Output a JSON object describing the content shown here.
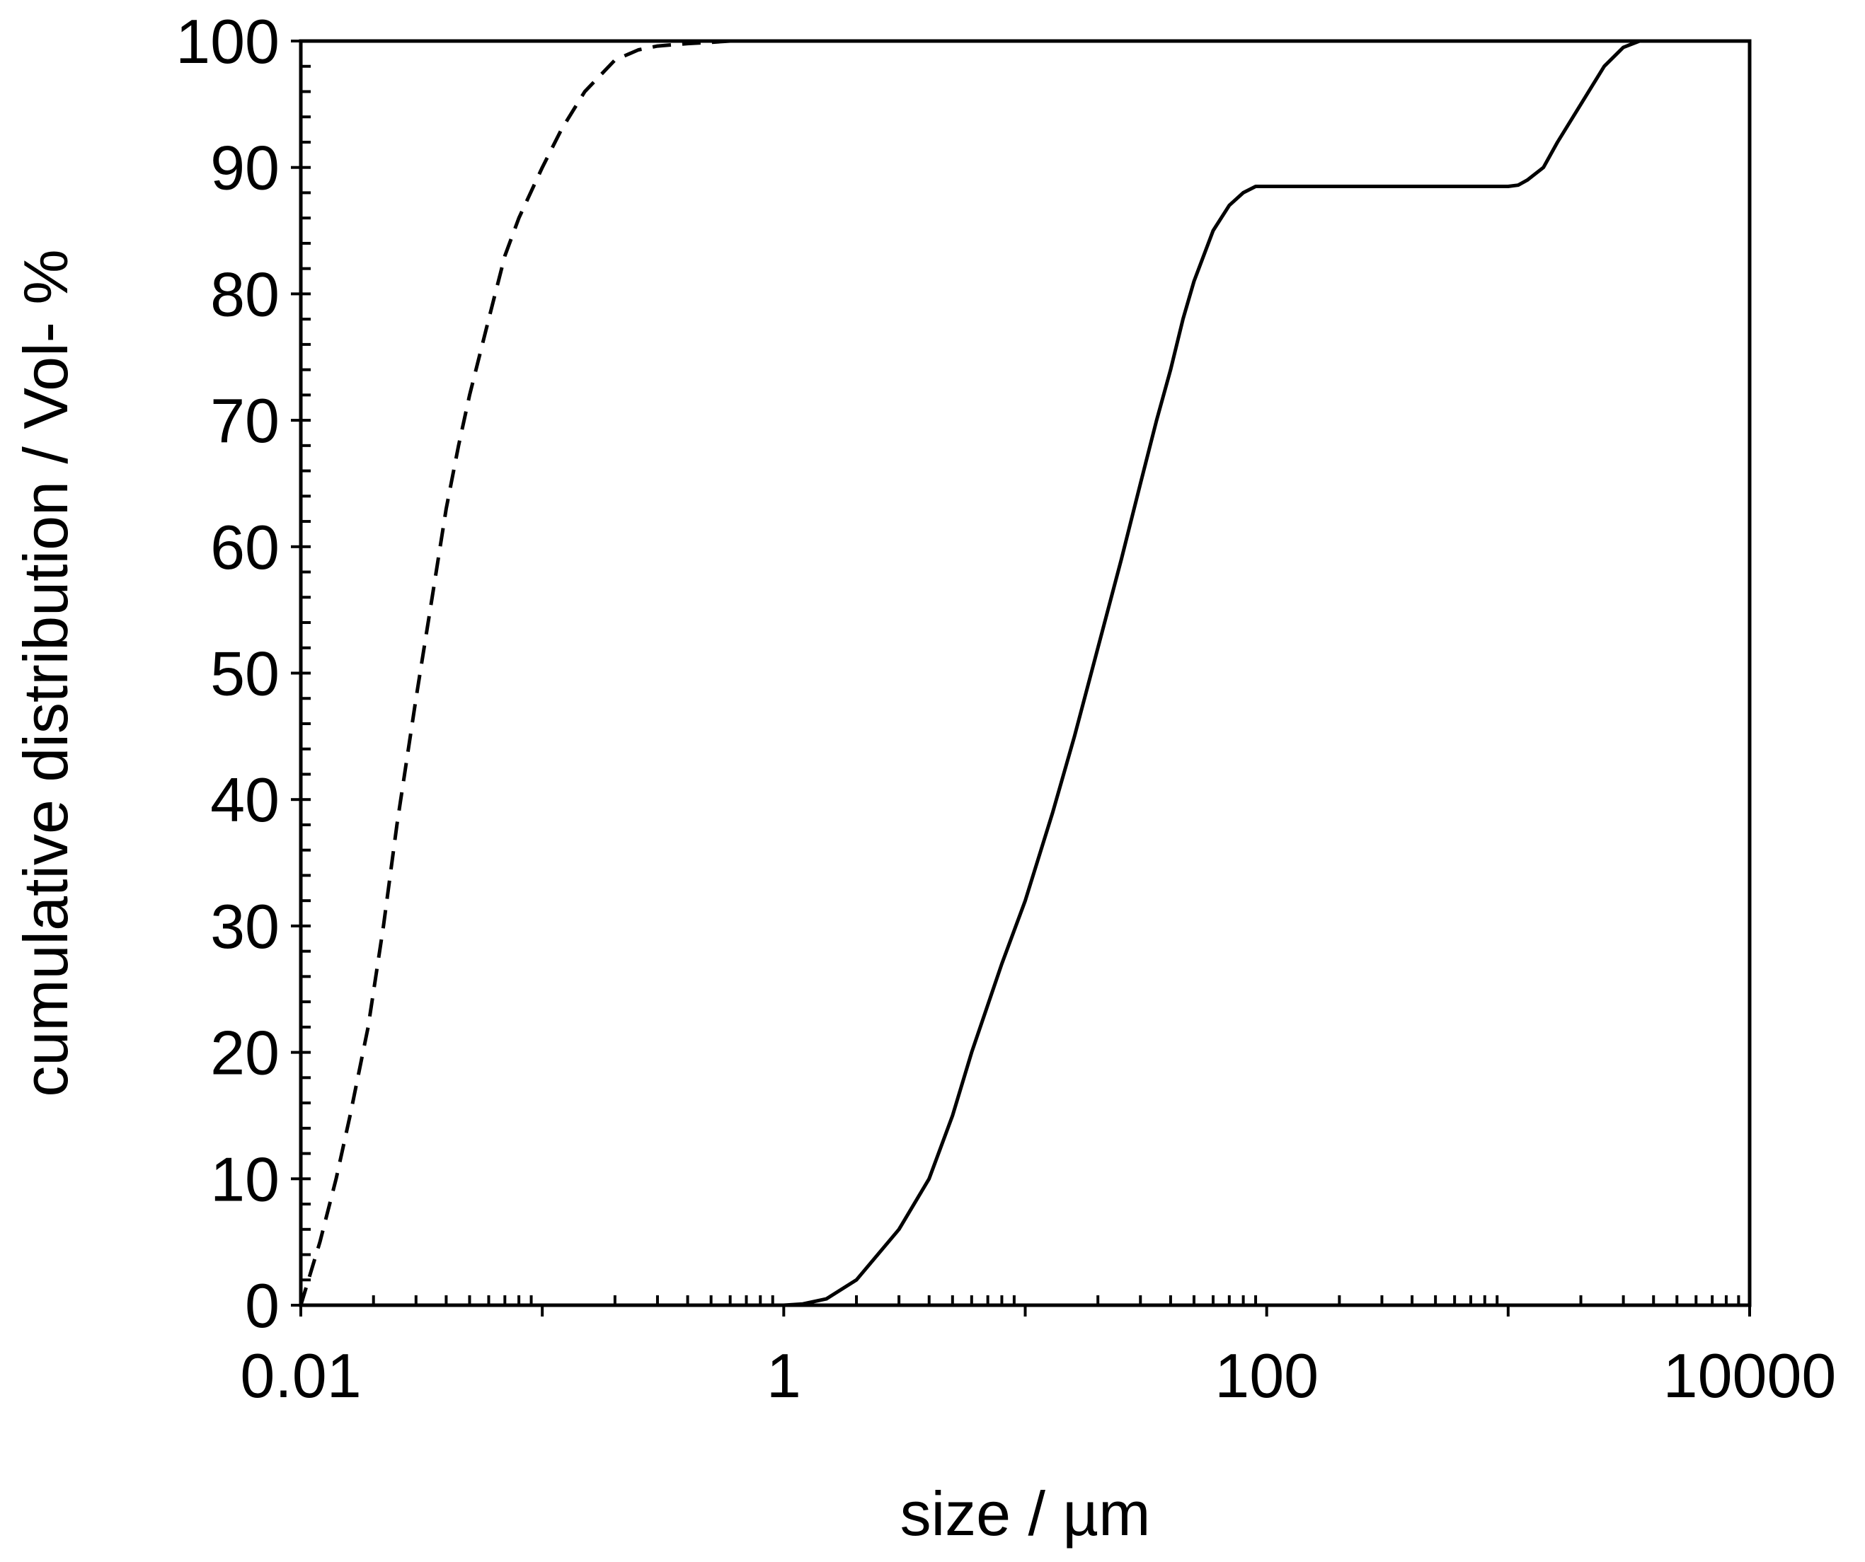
{
  "chart_data": {
    "type": "line",
    "title": "",
    "xlabel": "size / µm",
    "ylabel": "cumulative distribution / Vol- %",
    "xscale": "log",
    "xlim": [
      0.01,
      10000
    ],
    "ylim": [
      0,
      100
    ],
    "xticks": [
      0.01,
      1,
      100,
      10000
    ],
    "xtick_labels": [
      "0.01",
      "1",
      "100",
      "10000"
    ],
    "yticks": [
      0,
      10,
      20,
      30,
      40,
      50,
      60,
      70,
      80,
      90,
      100
    ],
    "ytick_labels": [
      "0",
      "10",
      "20",
      "30",
      "40",
      "50",
      "60",
      "70",
      "80",
      "90",
      "100"
    ],
    "grid": false,
    "legend": "none",
    "series": [
      {
        "style": "dashed",
        "color": "#000000",
        "x": [
          0.01,
          0.012,
          0.014,
          0.016,
          0.019,
          0.022,
          0.025,
          0.03,
          0.035,
          0.04,
          0.045,
          0.05,
          0.06,
          0.07,
          0.08,
          0.1,
          0.12,
          0.15,
          0.2,
          0.25,
          0.3,
          0.4,
          0.5,
          0.6,
          0.8,
          1,
          1.5,
          2,
          3,
          5,
          6
        ],
        "y": [
          0,
          5,
          10,
          15,
          22,
          30,
          38,
          48,
          56,
          63,
          68,
          72,
          78,
          83,
          86,
          90,
          93,
          96,
          98.5,
          99.3,
          99.6,
          99.8,
          99.9,
          100,
          100,
          100,
          100,
          100,
          100,
          100,
          100
        ]
      },
      {
        "style": "solid",
        "color": "#000000",
        "x": [
          1,
          1.2,
          1.5,
          2,
          3,
          4,
          5,
          6,
          8,
          10,
          13,
          16,
          20,
          25,
          30,
          35,
          40,
          45,
          50,
          60,
          70,
          80,
          90,
          100,
          110,
          120,
          200,
          500,
          1000,
          1100,
          1200,
          1400,
          1600,
          2000,
          2500,
          3000,
          3500,
          4000,
          5000,
          10000
        ],
        "y": [
          0,
          0.1,
          0.5,
          2,
          6,
          10,
          15,
          20,
          27,
          32,
          39,
          45,
          52,
          59,
          65,
          70,
          74,
          78,
          81,
          85,
          87,
          88,
          88.5,
          88.5,
          88.5,
          88.5,
          88.5,
          88.5,
          88.5,
          88.6,
          89,
          90,
          92,
          95,
          98,
          99.5,
          100,
          100,
          100,
          100
        ]
      }
    ]
  }
}
